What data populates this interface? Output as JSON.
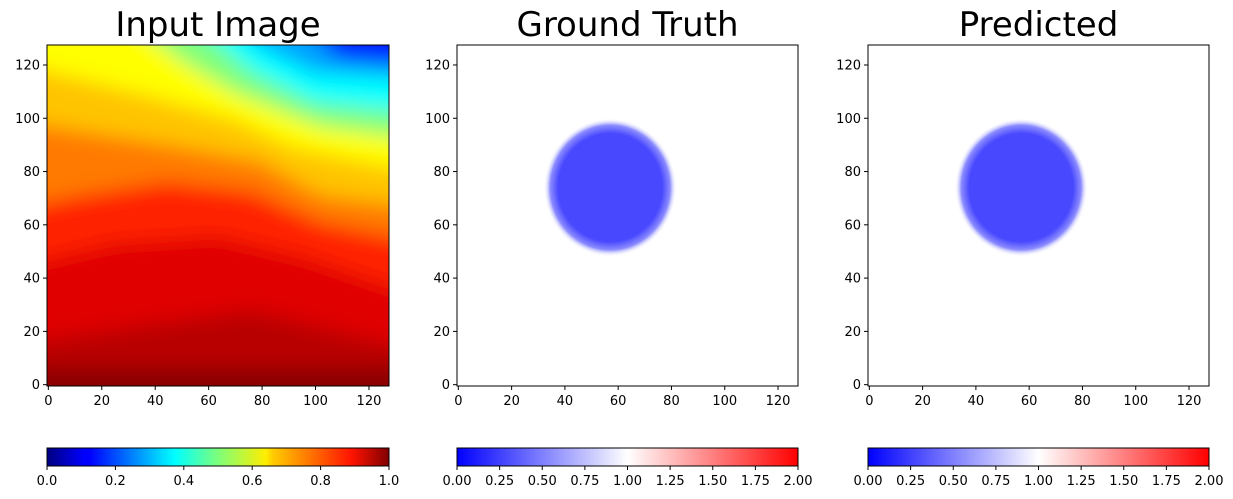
{
  "chart_data": [
    {
      "type": "heatmap",
      "title": "Input Image",
      "colormap": "jet",
      "xlim": [
        0,
        127
      ],
      "ylim": [
        0,
        127
      ],
      "xticks": [
        "0",
        "20",
        "40",
        "60",
        "80",
        "100",
        "120"
      ],
      "yticks": [
        "0",
        "20",
        "40",
        "60",
        "80",
        "100",
        "120"
      ],
      "approx_field": "smooth gradient: ~0.95-1.0 at bottom, ~0.75 around y=30-50, ~0.6 (yellow) along a band from (0,100) to (127,50), ~0.3-0.4 (cyan) around (60-120, 90-110), ~0.1 (blue) at top-right corner",
      "colorbar": {
        "range": [
          0.0,
          1.0
        ],
        "ticks": [
          "0.0",
          "0.2",
          "0.4",
          "0.6",
          "0.8",
          "1.0"
        ]
      }
    },
    {
      "type": "heatmap",
      "title": "Ground Truth",
      "colormap": "bwr",
      "xlim": [
        0,
        127
      ],
      "ylim": [
        0,
        127
      ],
      "xticks": [
        "0",
        "20",
        "40",
        "60",
        "80",
        "100",
        "120"
      ],
      "yticks": [
        "0",
        "20",
        "40",
        "60",
        "80",
        "100",
        "120"
      ],
      "background_value": 1.0,
      "blob": {
        "center_x": 57,
        "center_y": 74,
        "radius": 21,
        "value": 0.3
      },
      "colorbar": {
        "range": [
          0.0,
          2.0
        ],
        "ticks": [
          "0.00",
          "0.25",
          "0.50",
          "0.75",
          "1.00",
          "1.25",
          "1.50",
          "1.75",
          "2.00"
        ]
      }
    },
    {
      "type": "heatmap",
      "title": "Predicted",
      "colormap": "bwr",
      "xlim": [
        0,
        127
      ],
      "ylim": [
        0,
        127
      ],
      "xticks": [
        "0",
        "20",
        "40",
        "60",
        "80",
        "100",
        "120"
      ],
      "yticks": [
        "0",
        "20",
        "40",
        "60",
        "80",
        "100",
        "120"
      ],
      "background_value": 1.0,
      "blob": {
        "center_x": 57,
        "center_y": 74,
        "radius": 21,
        "value": 0.3
      },
      "colorbar": {
        "range": [
          0.0,
          2.0
        ],
        "ticks": [
          "0.00",
          "0.25",
          "0.50",
          "0.75",
          "1.00",
          "1.25",
          "1.50",
          "1.75",
          "2.00"
        ]
      }
    }
  ]
}
